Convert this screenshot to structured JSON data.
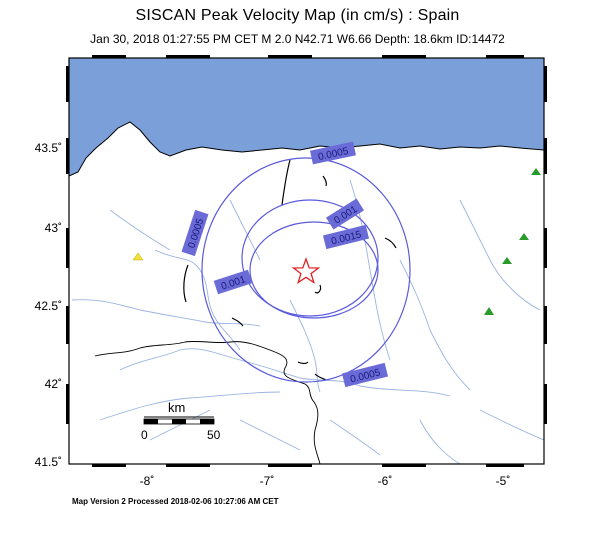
{
  "title": "SISCAN Peak Velocity Map (in cm/s) : Spain",
  "subtitle": "Jan 30, 2018 01:27:55 PM CET   M 2.0   N42.71 W6.66   Depth: 18.6km   ID:14472",
  "footer": "Map Version 2 Processed 2018-02-06 10:27:06 AM CET",
  "colors": {
    "sea": "#7b9fd9",
    "land": "#ffffff",
    "contour": "#5a5adc",
    "contour_label_bg": "#6b6bd8",
    "river": "#9bb4e0",
    "epicenter": "#e02020",
    "station_green": "#2a9a2a",
    "station_yellow": "#f2e23a"
  },
  "lat_labels": [
    "43.5˚",
    "43˚",
    "42.5˚",
    "42˚",
    "41.5˚"
  ],
  "lon_labels": [
    "-8˚",
    "-7˚",
    "-6˚",
    "-5˚"
  ],
  "scale_bar": {
    "unit": "km",
    "zero": "0",
    "end": "50"
  },
  "contour_labels": [
    "0.0005",
    "0.0005",
    "0.001",
    "0.0015",
    "0.001",
    "0.0005"
  ],
  "epicenter_icon": "star-icon",
  "station_icons": [
    "triangle-green-icon",
    "triangle-yellow-icon"
  ]
}
